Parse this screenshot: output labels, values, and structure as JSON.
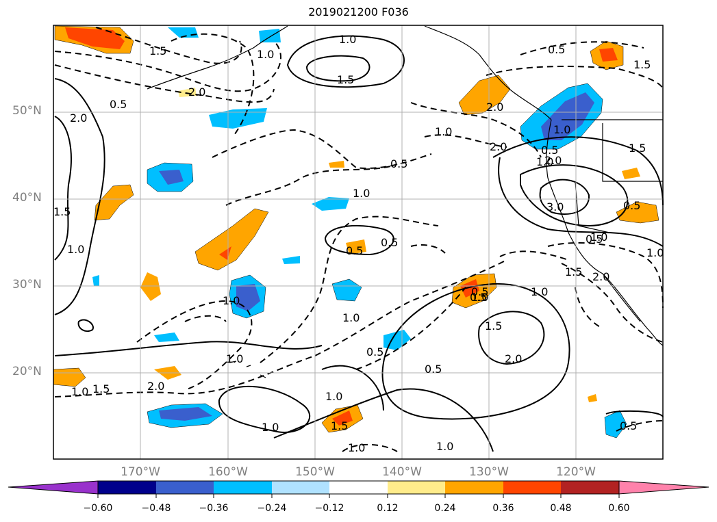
{
  "title": "2019021200 F036",
  "lat_labels": [
    "50°N",
    "40°N",
    "30°N",
    "20°N"
  ],
  "lon_labels": [
    "170°W",
    "160°W",
    "150°W",
    "140°W",
    "130°W",
    "120°W"
  ],
  "contour_labels": {
    "solid": [
      "1.0",
      "1.5",
      "2.0",
      "0.5",
      "1.0",
      "1.5",
      "1.0",
      "1.5",
      "1.0",
      "2.0",
      "3.0",
      "1.0",
      "1.0",
      "1.0",
      "0.5",
      "0.5",
      "0.5",
      "1.5",
      "1.0",
      "1.0",
      "1.5",
      "1.5",
      "2.0",
      "1.0",
      "1.0",
      "0.5"
    ],
    "dashed": [
      "1.5",
      "2.0",
      "0.5",
      "2.0",
      "1.0",
      "0.5",
      "1.0",
      "2.0",
      "1.0",
      "2.0",
      "1.0",
      "1.0",
      "0.5",
      "0.5",
      "1.0",
      "1.0",
      "2.0",
      "1.5",
      "0.5",
      "0.5",
      "0.5",
      "1.5",
      "0.5",
      "1.0"
    ]
  },
  "colorbar": {
    "ticks": [
      "−0.60",
      "−0.48",
      "−0.36",
      "−0.24",
      "−0.12",
      "0.12",
      "0.24",
      "0.36",
      "0.48",
      "0.60"
    ],
    "colors": [
      "#9932cc",
      "#00008b",
      "#3a5fcd",
      "#00bfff",
      "#b0e2ff",
      "#ffffff",
      "#ffec8b",
      "#ffa500",
      "#ff4500",
      "#b22222",
      "#ff82ab"
    ]
  },
  "colors": {
    "grid": "#b0b0b0",
    "tick_label": "#7f7f7f",
    "contour": "#000000"
  }
}
